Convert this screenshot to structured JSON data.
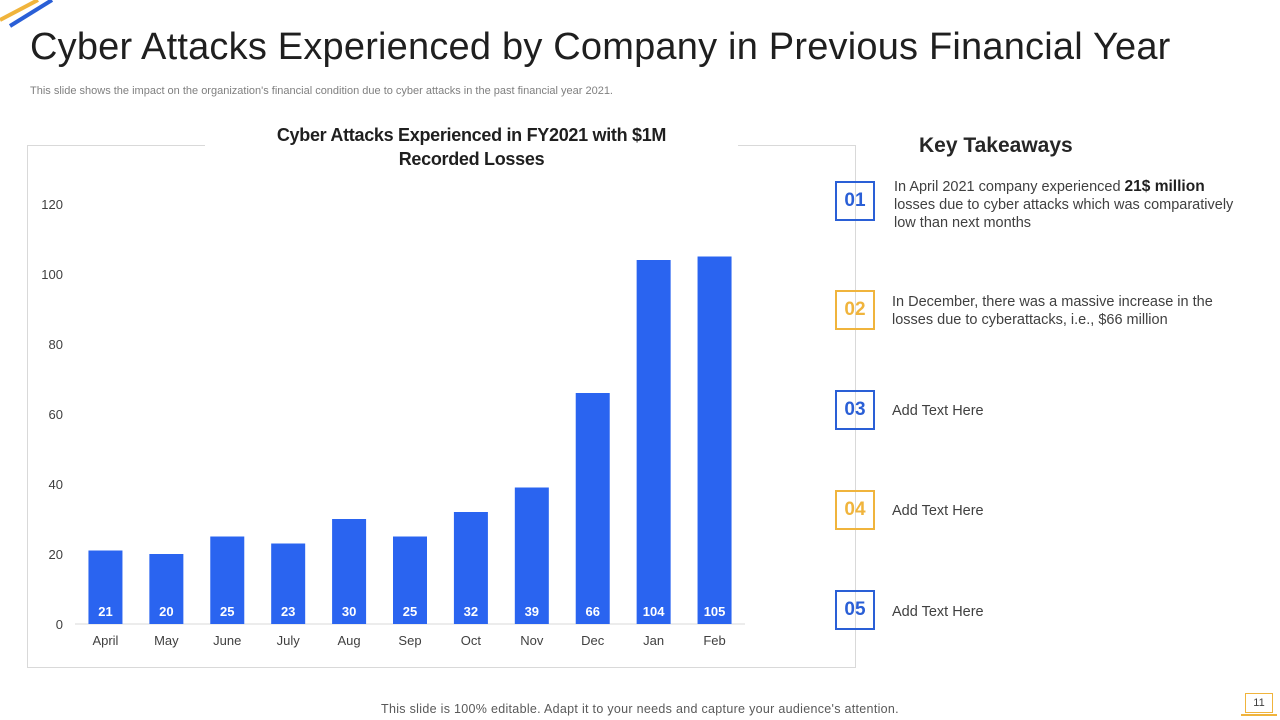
{
  "slide": {
    "title": "Cyber Attacks Experienced by Company in Previous Financial Year",
    "subtitle": "This slide shows the impact on the organization's financial condition due to cyber attacks in the past financial year 2021.",
    "footer": "This slide is 100% editable. Adapt it to your needs and capture your audience's attention.",
    "page_number": "11",
    "colors": {
      "accent_blue": "#2a5fd6",
      "accent_gold": "#f0b43c",
      "bar_blue": "#2a64f0"
    }
  },
  "chart_data": {
    "type": "bar",
    "title_line1": "Cyber Attacks Experienced in FY2021 with $1M",
    "title_line2": "Recorded Losses",
    "categories": [
      "April",
      "May",
      "June",
      "July",
      "Aug",
      "Sep",
      "Oct",
      "Nov",
      "Dec",
      "Jan",
      "Feb"
    ],
    "values": [
      21,
      20,
      25,
      23,
      30,
      25,
      32,
      39,
      66,
      104,
      105
    ],
    "ylim": [
      0,
      120
    ],
    "yticks": [
      0,
      20,
      40,
      60,
      80,
      100,
      120
    ],
    "xlabel": "",
    "ylabel": "",
    "grid": false,
    "legend": "none"
  },
  "takeaways": {
    "heading": "Key Takeaways",
    "items": [
      {
        "number": "01",
        "style": "blue",
        "text_before": "In April 2021 company experienced ",
        "text_bold": "21$ million",
        "text_after": " losses due to cyber attacks which was comparatively low than next months"
      },
      {
        "number": "02",
        "style": "gold",
        "text": "In December, there was a massive increase in the losses due to cyberattacks, i.e., $66 million"
      },
      {
        "number": "03",
        "style": "blue",
        "text": "Add Text Here"
      },
      {
        "number": "04",
        "style": "gold",
        "text": "Add Text Here"
      },
      {
        "number": "05",
        "style": "blue",
        "text": "Add Text Here"
      }
    ]
  }
}
